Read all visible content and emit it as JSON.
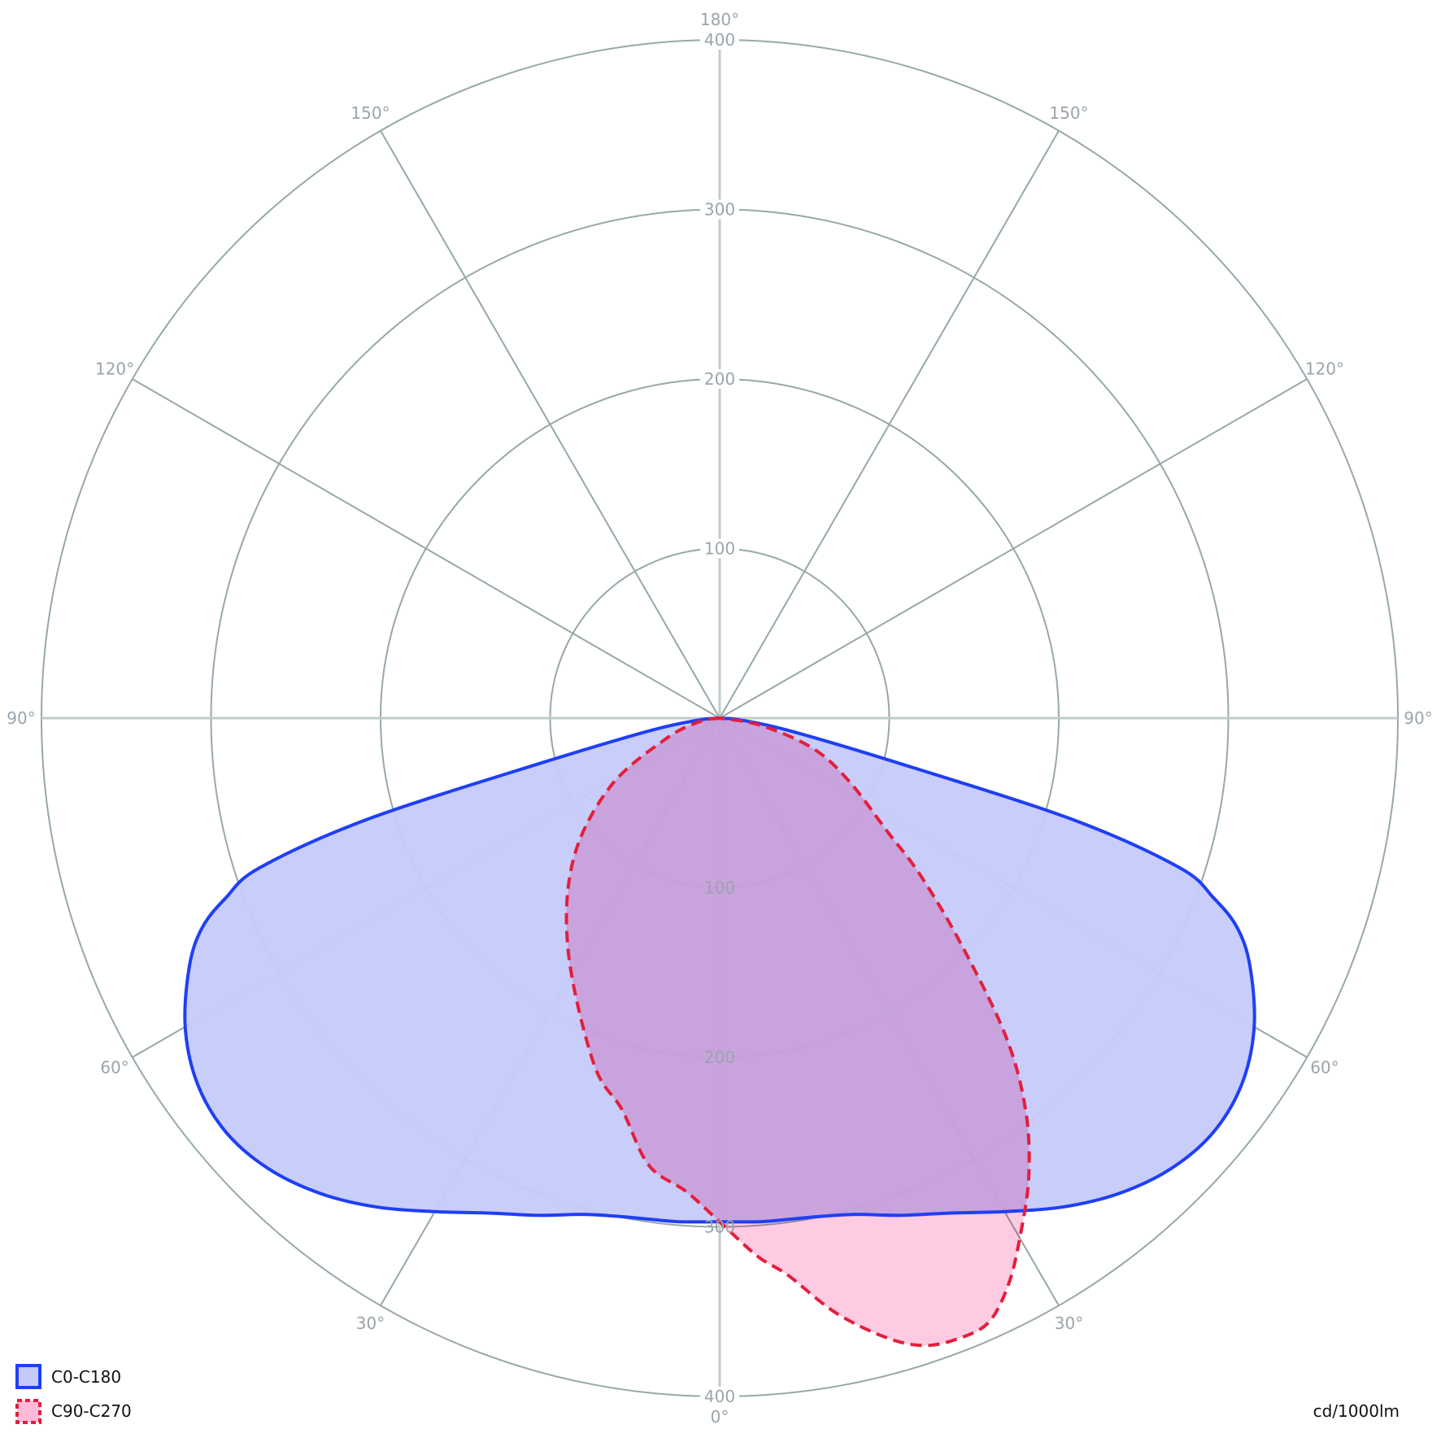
{
  "chart_data": {
    "type": "polar",
    "unit_label": "cd/1000lm",
    "radial_range": [
      0,
      400
    ],
    "radial_ticks": [
      "100",
      "200",
      "300",
      "400"
    ],
    "angle_ticks": [
      "0°",
      "30°",
      "60°",
      "90°",
      "120°",
      "150°",
      "180°"
    ],
    "grid": true,
    "legend_placement": "bottom-left",
    "series": [
      {
        "name": "C0-C180",
        "stroke": "#1f3ff5",
        "fill": "#c6caf9",
        "dashed": false,
        "symmetric": true,
        "angles": [
          0,
          5,
          10,
          15,
          20,
          25,
          30,
          35,
          40,
          45,
          50,
          55,
          60,
          65,
          68,
          70,
          72,
          74,
          76,
          80,
          85,
          90
        ],
        "values": [
          297,
          298,
          299,
          303,
          312,
          322,
          336,
          352,
          366,
          376,
          380,
          376,
          364,
          345,
          329,
          310,
          285,
          215,
          105,
          40,
          12,
          0
        ]
      },
      {
        "name": "C90-C270",
        "stroke": "#e41e3c",
        "fill": "#ffbad9",
        "dashed": true,
        "symmetric": false,
        "angles": [
          -90,
          -80,
          -69,
          -58,
          -46,
          -33,
          -20,
          -14,
          -9,
          -4,
          0,
          4,
          7,
          11,
          15,
          18,
          21,
          24,
          27,
          30,
          34,
          38,
          42,
          47,
          52,
          56,
          64,
          72,
          80,
          90
        ],
        "values": [
          0,
          12,
          34,
          76,
          120,
          164,
          217,
          238,
          267,
          280,
          297,
          318,
          331,
          357,
          378,
          389,
          392,
          390,
          375,
          354,
          326,
          293,
          252,
          194,
          150,
          119,
          85,
          58,
          25,
          0
        ]
      }
    ]
  }
}
